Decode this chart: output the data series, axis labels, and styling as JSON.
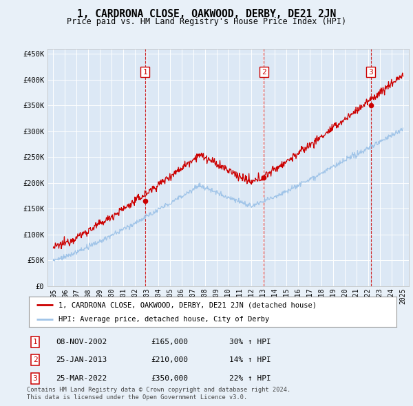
{
  "title": "1, CARDRONA CLOSE, OAKWOOD, DERBY, DE21 2JN",
  "subtitle": "Price paid vs. HM Land Registry's House Price Index (HPI)",
  "red_label": "1, CARDRONA CLOSE, OAKWOOD, DERBY, DE21 2JN (detached house)",
  "blue_label": "HPI: Average price, detached house, City of Derby",
  "transactions": [
    {
      "num": 1,
      "date": "08-NOV-2002",
      "price": 165000,
      "pct": "30%",
      "dir": "↑",
      "ref": "HPI",
      "year": 2002.86
    },
    {
      "num": 2,
      "date": "25-JAN-2013",
      "price": 210000,
      "pct": "14%",
      "dir": "↑",
      "ref": "HPI",
      "year": 2013.07
    },
    {
      "num": 3,
      "date": "25-MAR-2022",
      "price": 350000,
      "pct": "22%",
      "dir": "↑",
      "ref": "HPI",
      "year": 2022.23
    }
  ],
  "footnote1": "Contains HM Land Registry data © Crown copyright and database right 2024.",
  "footnote2": "This data is licensed under the Open Government Licence v3.0.",
  "ylim": [
    0,
    460000
  ],
  "yticks": [
    0,
    50000,
    100000,
    150000,
    200000,
    250000,
    300000,
    350000,
    400000,
    450000
  ],
  "xlim_start": 1994.5,
  "xlim_end": 2025.5,
  "red_color": "#cc0000",
  "blue_color": "#a0c4e8",
  "dashed_color": "#cc0000",
  "background_color": "#e8f0f8",
  "plot_bg": "#dce8f5"
}
